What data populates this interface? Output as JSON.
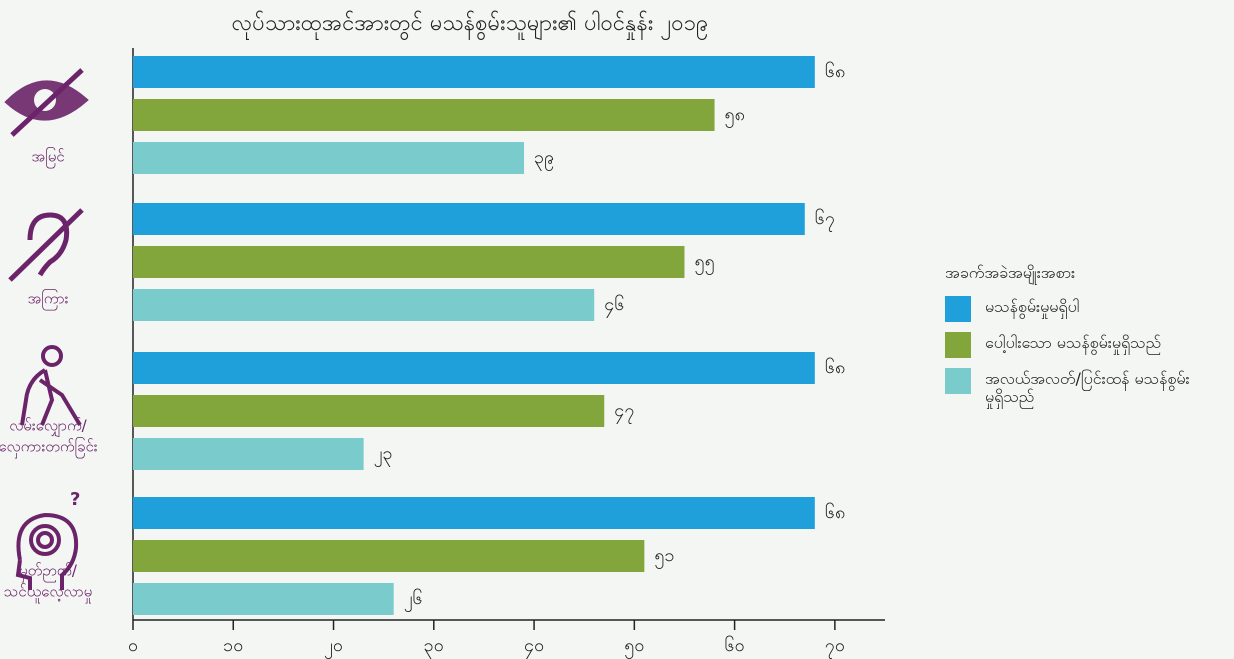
{
  "chart_data": {
    "type": "hbar",
    "title": "လုပ်သားထုအင်အားတွင် မသန်စွမ်းသူများ၏ ပါဝင်နှုန်း ၂၀၁၉",
    "legend_title": "အခက်အခဲအမျိုးအစား",
    "categories": [
      [
        "အမြင်"
      ],
      [
        "အကြား"
      ],
      [
        "လမ်းလျှောက်/",
        "လှေကားတက်ခြင်း"
      ],
      [
        "မှတ်ဉာဏ်/",
        "သင်ယူလေ့လာမှု"
      ]
    ],
    "series": [
      {
        "name": "မသန်စွမ်းမှုမရှိပါ",
        "color": "#1fa0db",
        "values": [
          68,
          67,
          68,
          68
        ],
        "value_labels": [
          "၆၈",
          "၆၇",
          "၆၈",
          "၆၈"
        ]
      },
      {
        "name": "ပေါ့ပါးသော မသန်စွမ်းမှုရှိသည်",
        "color": "#83a63c",
        "values": [
          58,
          55,
          47,
          51
        ],
        "value_labels": [
          "၅၈",
          "၅၅",
          "၄၇",
          "၅၁"
        ]
      },
      {
        "name": "အလယ်အလတ်/ပြင်းထန် မသန်စွမ်းမှုရှိသည်",
        "color": "#79cbcc",
        "values": [
          39,
          46,
          23,
          26
        ],
        "value_labels": [
          "၃၉",
          "၄၆",
          "၂၃",
          "၂၆"
        ]
      }
    ],
    "xlim": [
      0,
      75
    ],
    "xticks": [
      {
        "value": 0,
        "label": "၀"
      },
      {
        "value": 10,
        "label": "၁၀"
      },
      {
        "value": 20,
        "label": "၂၀"
      },
      {
        "value": 30,
        "label": "၃၀"
      },
      {
        "value": 40,
        "label": "၄၀"
      },
      {
        "value": 50,
        "label": "၅၀"
      },
      {
        "value": 60,
        "label": "၆၀"
      },
      {
        "value": 70,
        "label": "၇၀"
      }
    ]
  }
}
